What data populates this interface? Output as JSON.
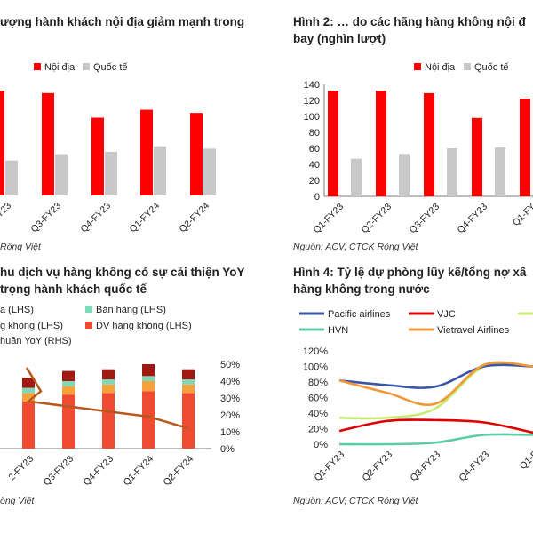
{
  "charts": [
    {
      "title_lines": [
        "ượng hành khách nội địa giảm mạnh trong"
      ],
      "source": "Rồng Việt",
      "chart_data": {
        "type": "bar",
        "categories": [
          "Q2-FY23",
          "Q3-FY23",
          "Q4-FY23",
          "Q1-FY24",
          "Q2-FY24"
        ],
        "category_labels": [
          "FY23",
          "Q3-FY23",
          "Q4-FY23",
          "Q1-FY24",
          "Q2-FY24"
        ],
        "series": [
          {
            "name": "Nội địa",
            "color": "#ff0000",
            "values": [
              132,
              129,
              98,
              108,
              104
            ]
          },
          {
            "name": "Quốc tế",
            "color": "#c8c8c8",
            "values": [
              44,
              52,
              55,
              62,
              59
            ]
          }
        ],
        "ylim": [
          0,
          140
        ]
      }
    },
    {
      "title_lines": [
        "Hình 2: … do các hãng hàng không nội đ",
        "bay (nghìn lượt)"
      ],
      "source": "Nguồn: ACV, CTCK Rồng Việt",
      "chart_data": {
        "type": "bar",
        "categories": [
          "Q1-FY23",
          "Q2-FY23",
          "Q3-FY23",
          "Q4-FY23",
          "Q1-FY24"
        ],
        "category_labels": [
          "Q1-FY23",
          "Q2-FY23",
          "Q3-FY23",
          "Q4-FY23",
          "Q1-FY"
        ],
        "series": [
          {
            "name": "Nội địa",
            "color": "#ff0000",
            "values": [
              132,
              132,
              129,
              98,
              122
            ]
          },
          {
            "name": "Quốc tế",
            "color": "#c8c8c8",
            "values": [
              47,
              53,
              60,
              61,
              63
            ]
          }
        ],
        "ylim": [
          0,
          140
        ],
        "yticks": [
          "0",
          "20",
          "40",
          "60",
          "80",
          "100",
          "120",
          "140"
        ]
      }
    },
    {
      "title_lines": [
        "hu dịch vụ hàng không có sự cải thiện YoY",
        "trọng hành khách quốc tế"
      ],
      "source": "ồng Việt",
      "legend": [
        "a (LHS)",
        "Bán hàng (LHS)",
        "g không (LHS)",
        "DV hàng không (LHS)",
        "huần YoY (RHS)"
      ],
      "chart_data": {
        "type": "bar",
        "categories": [
          "Q2-FY23",
          "Q3-FY23",
          "Q4-FY23",
          "Q1-FY24",
          "Q2-FY24"
        ],
        "category_labels": [
          "2-FY23",
          "Q3-FY23",
          "Q4-FY23",
          "Q1-FY24",
          "Q2-FY24"
        ],
        "stacks": [
          {
            "name": "DV hàng không",
            "color": "#ef4a32",
            "values": [
              28,
              32,
              33,
              34,
              33
            ]
          },
          {
            "name": "stack-2",
            "color": "#f6a23c",
            "values": [
              5,
              5,
              5,
              6,
              5
            ]
          },
          {
            "name": "Bán hàng",
            "color": "#7fd9b6",
            "values": [
              3,
              3,
              3,
              3,
              3
            ]
          },
          {
            "name": "stack-4",
            "color": "#a01a14",
            "values": [
              6,
              6,
              6,
              7,
              6
            ]
          }
        ],
        "left_ylim": [
          0,
          50
        ],
        "line": {
          "name": "huần YoY",
          "color": "#b8581c",
          "x_start": 0.85,
          "values": [
            28,
            25,
            22,
            19,
            12
          ],
          "start_value": 48
        },
        "right_ylim": [
          0,
          50
        ],
        "right_ticks": [
          "0%",
          "10%",
          "20%",
          "30%",
          "40%",
          "50%"
        ]
      }
    },
    {
      "title_lines": [
        "Hình 4: Tỷ lệ dự phòng lũy kế/tổng nợ xấ",
        "hàng không trong nước"
      ],
      "source": "Nguồn: ACV, CTCK Rồng Việt",
      "legend": [
        "Pacific airlines",
        "VJC",
        "HVN",
        "Vietravel Airlines"
      ],
      "chart_data": {
        "type": "line",
        "categories": [
          "Q1-FY23",
          "Q2-FY23",
          "Q3-FY23",
          "Q4-FY23",
          "Q1-FY24"
        ],
        "category_labels": [
          "Q1-FY23",
          "Q2-FY23",
          "Q3-FY23",
          "Q4-FY23",
          "Q1-F"
        ],
        "ylim": [
          0,
          1.2
        ],
        "yticks": [
          "0%",
          "20%",
          "40%",
          "60%",
          "80%",
          "100%",
          "120%"
        ],
        "series": [
          {
            "name": "Pacific airlines",
            "color": "#3b56a8",
            "values": [
              0.82,
              0.76,
              0.74,
              1.0,
              1.0
            ]
          },
          {
            "name": "VJC",
            "color": "#dd0000",
            "values": [
              0.17,
              0.3,
              0.31,
              0.28,
              0.15
            ]
          },
          {
            "name": "stack-yellowgreen",
            "color": "#c6eb6f",
            "values": [
              0.34,
              0.34,
              0.46,
              1.0,
              1.0
            ]
          },
          {
            "name": "HVN",
            "color": "#5ccca8",
            "values": [
              0.0,
              0.0,
              0.02,
              0.12,
              0.12
            ]
          },
          {
            "name": "Vietravel Airlines",
            "color": "#f09838",
            "values": [
              0.82,
              0.66,
              0.52,
              1.02,
              1.0
            ]
          }
        ]
      }
    }
  ]
}
